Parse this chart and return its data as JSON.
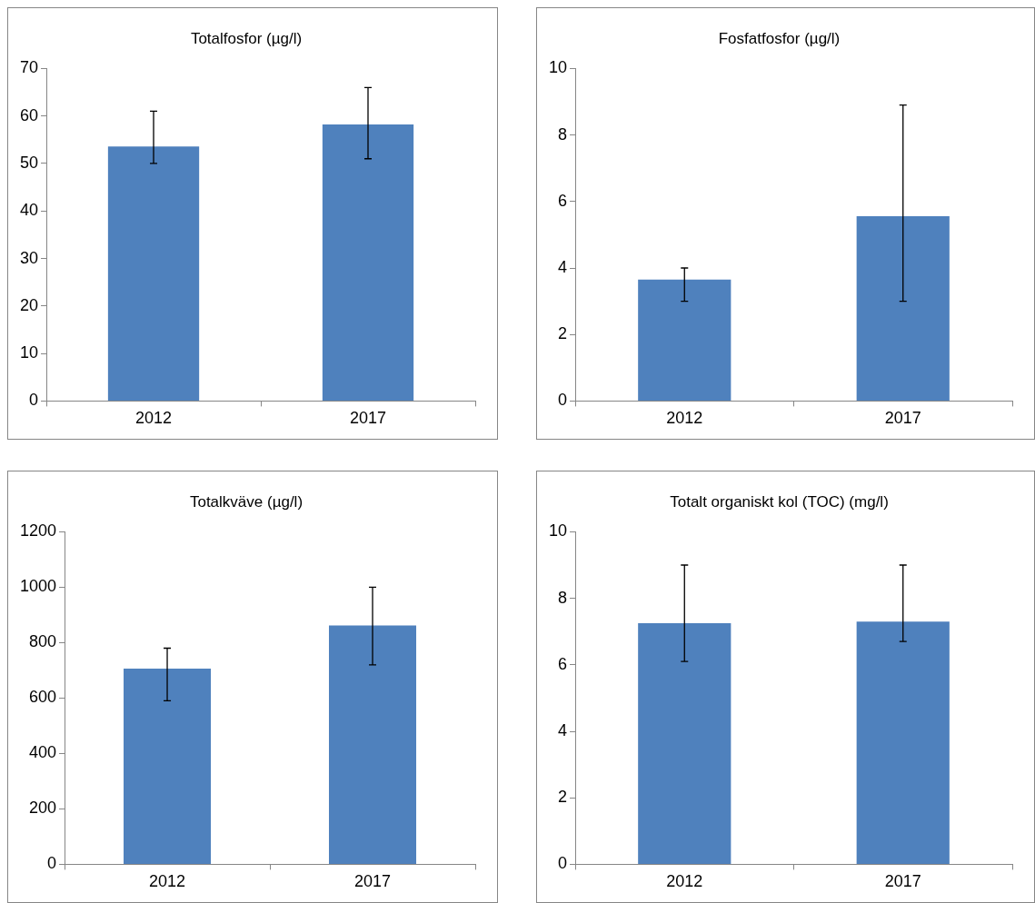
{
  "chart_data": [
    {
      "type": "bar",
      "title": "Totalfosfor (µg/l)",
      "categories": [
        "2012",
        "2017"
      ],
      "values": [
        53.6,
        58.2
      ],
      "color": "#4f81bd",
      "errors": [
        [
          50,
          61
        ],
        [
          51,
          66
        ]
      ],
      "ylim": [
        0,
        70
      ],
      "yticks": [
        0,
        10,
        20,
        30,
        40,
        50,
        60,
        70
      ],
      "grid": false,
      "legend": false
    },
    {
      "type": "bar",
      "title": "Fosfatfosfor (µg/l)",
      "categories": [
        "2012",
        "2017"
      ],
      "values": [
        3.65,
        5.56
      ],
      "color": "#4f81bd",
      "errors": [
        [
          3.0,
          4.0
        ],
        [
          3.0,
          8.9
        ]
      ],
      "ylim": [
        0,
        10
      ],
      "yticks": [
        0,
        2,
        4,
        6,
        8,
        10
      ],
      "grid": false,
      "legend": false
    },
    {
      "type": "bar",
      "title": "Totalkväve (µg/l)",
      "categories": [
        "2012",
        "2017"
      ],
      "values": [
        706,
        862
      ],
      "color": "#4f81bd",
      "errors": [
        [
          590,
          780
        ],
        [
          720,
          1000
        ]
      ],
      "ylim": [
        0,
        1200
      ],
      "yticks": [
        0,
        200,
        400,
        600,
        800,
        1000,
        1200
      ],
      "grid": false,
      "legend": false
    },
    {
      "type": "bar",
      "title": "Totalt organiskt kol (TOC) (mg/l)",
      "categories": [
        "2012",
        "2017"
      ],
      "values": [
        7.25,
        7.3
      ],
      "color": "#4f81bd",
      "errors": [
        [
          6.1,
          9
        ],
        [
          6.7,
          9
        ]
      ],
      "ylim": [
        0,
        10
      ],
      "yticks": [
        0,
        2,
        4,
        6,
        8,
        10
      ],
      "grid": false,
      "legend": false
    }
  ]
}
